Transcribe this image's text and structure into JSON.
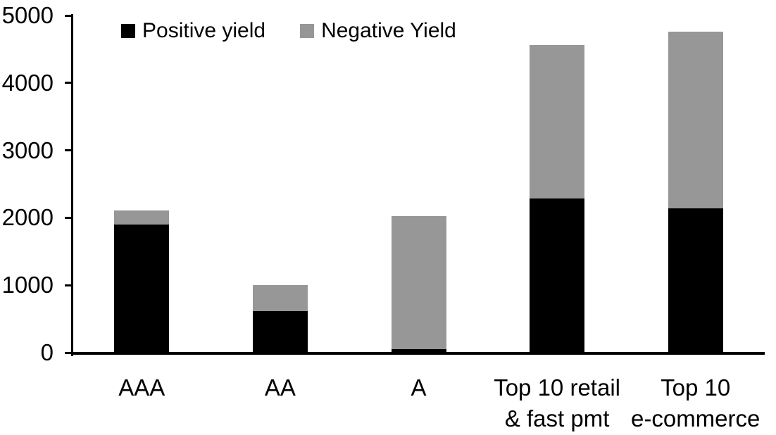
{
  "chart_data": {
    "type": "bar",
    "stacked": true,
    "title": "",
    "xlabel": "",
    "ylabel": "",
    "grid": false,
    "legend_position": "top",
    "ylim": [
      0,
      5000
    ],
    "yticks": [
      0,
      1000,
      2000,
      3000,
      4000,
      5000
    ],
    "categories": [
      "AAA",
      "AA",
      "A",
      "Top 10 retail\n& fast pmt",
      "Top 10\ne-commerce"
    ],
    "series": [
      {
        "name": "Positive yield",
        "color": "#000000",
        "values": [
          1900,
          620,
          50,
          2290,
          2140
        ]
      },
      {
        "name": "Negative Yield",
        "color": "#979797",
        "values": [
          210,
          380,
          1980,
          2270,
          2620
        ]
      }
    ]
  }
}
